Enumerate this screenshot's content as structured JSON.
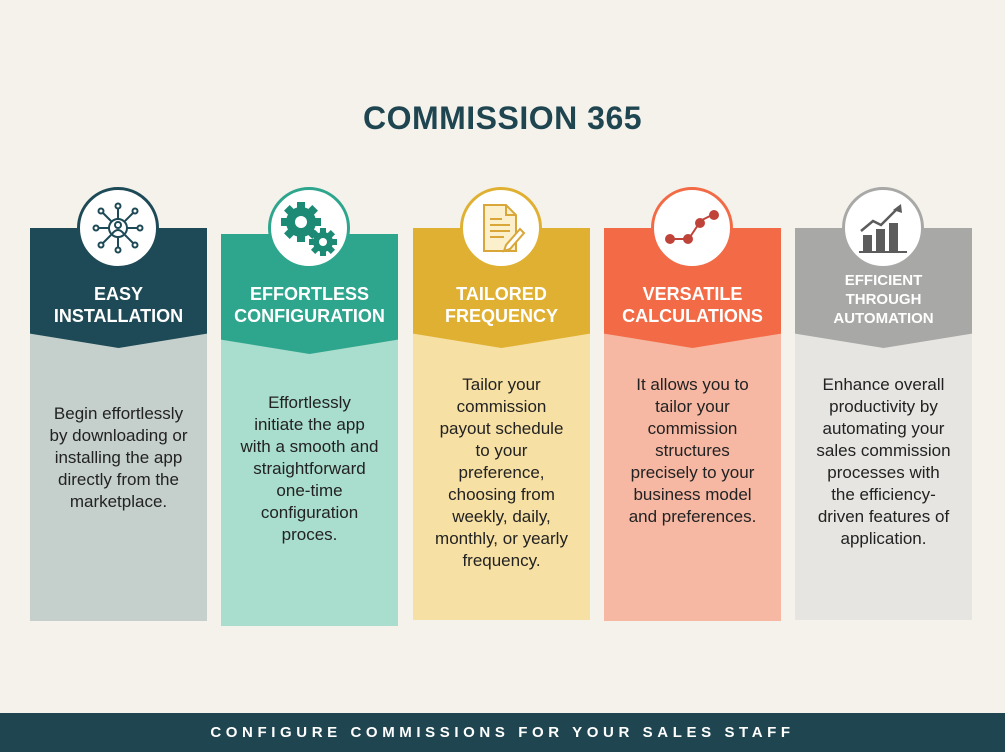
{
  "title": "COMMISSION 365",
  "cards": [
    {
      "heading_line1": "EASY",
      "heading_line2": "INSTALLATION",
      "icon": "network-user-icon",
      "body": [
        "Begin effortlessly",
        "by downloading or",
        "installing the app",
        "directly from the",
        "marketplace."
      ]
    },
    {
      "heading_line1": "EFFORTLESS",
      "heading_line2": "CONFIGURATION",
      "icon": "gears-icon",
      "body": [
        "Effortlessly",
        "initiate the app",
        "with a smooth and",
        "straightforward",
        "one-time",
        "configuration",
        "proces."
      ]
    },
    {
      "heading_line1": "TAILORED",
      "heading_line2": "FREQUENCY",
      "icon": "document-pen-icon",
      "body": [
        "Tailor your",
        "commission",
        "payout schedule",
        "to your",
        "preference,",
        "choosing from",
        "weekly, daily,",
        "monthly, or yearly",
        "frequency."
      ]
    },
    {
      "heading_line1": "VERSATILE",
      "heading_line2": "CALCULATIONS",
      "icon": "connected-nodes-icon",
      "body": [
        "It allows you to",
        "tailor your",
        "commission",
        "structures",
        "precisely to your",
        "business model",
        "and preferences."
      ]
    },
    {
      "heading_line1": "EFFICIENT",
      "heading_line2": "THROUGH",
      "heading_line3": "AUTOMATION",
      "icon": "growth-chart-icon",
      "body": [
        "Enhance overall",
        "productivity by",
        "automating your",
        "sales commission",
        "processes with",
        "the efficiency-",
        "driven features of",
        "application."
      ]
    }
  ],
  "footer": "CONFIGURE COMMISSIONS FOR YOUR SALES STAFF",
  "colors": {
    "title": "#1f4650",
    "card1_head": "#1d4a56",
    "card1_body": "#c5d0cd",
    "card2_head": "#2ea58d",
    "card2_body": "#a9ddcd",
    "card3_head": "#e0b032",
    "card3_body": "#f7e0a3",
    "card4_head": "#f26b46",
    "card4_body": "#f6b7a3",
    "card5_head": "#a8a8a6",
    "card5_body": "#e6e5e1"
  }
}
